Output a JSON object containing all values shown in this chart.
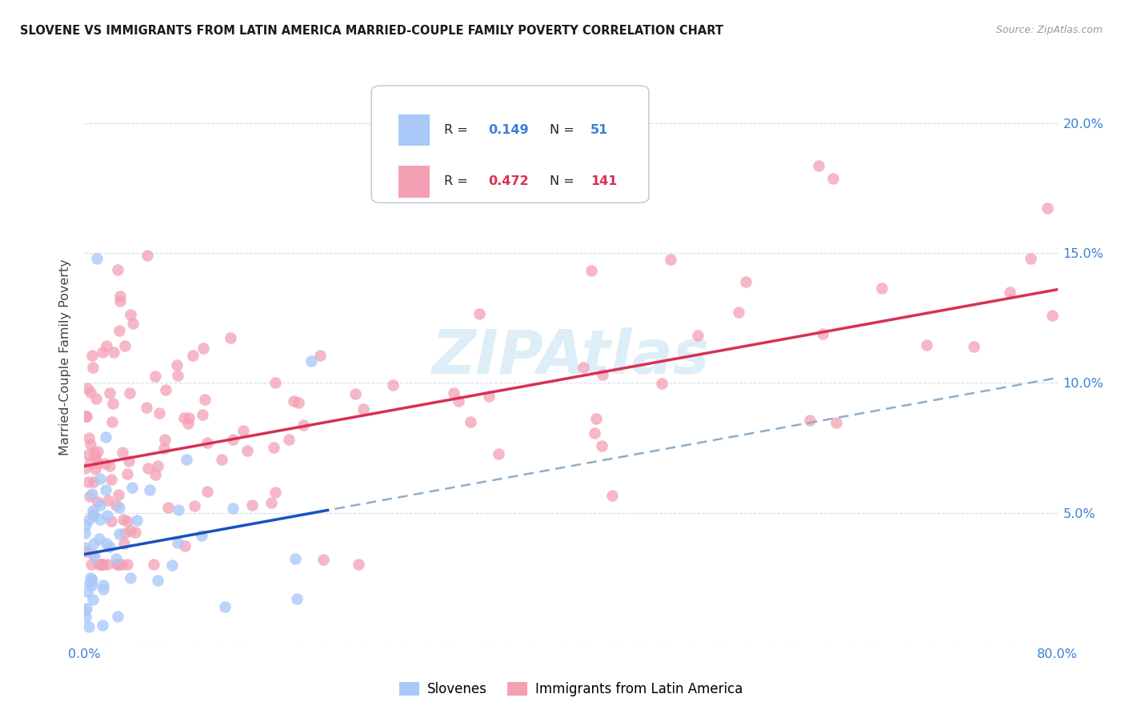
{
  "title": "SLOVENE VS IMMIGRANTS FROM LATIN AMERICA MARRIED-COUPLE FAMILY POVERTY CORRELATION CHART",
  "source": "Source: ZipAtlas.com",
  "ylabel": "Married-Couple Family Poverty",
  "xlim": [
    0.0,
    0.8
  ],
  "ylim": [
    0.0,
    0.22
  ],
  "slovene_R": 0.149,
  "slovene_N": 51,
  "latin_R": 0.472,
  "latin_N": 141,
  "slovene_color": "#aac8f8",
  "latin_color": "#f4a0b4",
  "slovene_line_color": "#1a50c0",
  "latin_line_color": "#d83055",
  "dashed_line_color": "#90aec8",
  "watermark_color": "#ddeef8",
  "legend_label_slovene": "Slovenes",
  "legend_label_latin": "Immigrants from Latin America",
  "right_ytick_color": "#3a7fd5",
  "xtick_color": "#3a7fd5",
  "slovene_intercept": 0.034,
  "slovene_slope": 0.085,
  "latin_intercept": 0.068,
  "latin_slope": 0.085
}
